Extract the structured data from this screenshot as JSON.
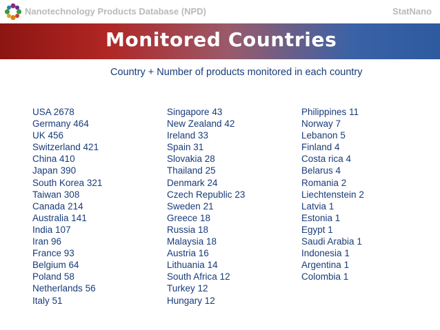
{
  "header": {
    "database_title": "Nanotechnology Products Database (NPD)",
    "brand": "StatNano",
    "logo_icon": "statnano-flower-logo-icon"
  },
  "banner": {
    "title": "Monitored Countries",
    "colors": [
      "#8c1512",
      "#b02624",
      "#9a5a6a",
      "#3a62a6",
      "#2e5aa0"
    ]
  },
  "subtitle": "Country + Number of products monitored in each country",
  "text_color": "#173b7a",
  "columns": [
    [
      {
        "country": "USA",
        "count": "2678"
      },
      {
        "country": "Germany",
        "count": "464"
      },
      {
        "country": "UK",
        "count": "456"
      },
      {
        "country": "Switzerland",
        "count": "421"
      },
      {
        "country": "China",
        "count": "410"
      },
      {
        "country": "Japan",
        "count": "390"
      },
      {
        "country": "South Korea",
        "count": "321"
      },
      {
        "country": "Taiwan",
        "count": "308"
      },
      {
        "country": "Canada",
        "count": "214"
      },
      {
        "country": "Australia",
        "count": "141"
      },
      {
        "country": "India",
        "count": "107"
      },
      {
        "country": "Iran",
        "count": "96"
      },
      {
        "country": "France",
        "count": "93"
      },
      {
        "country": "Belgium",
        "count": "64"
      },
      {
        "country": "Poland",
        "count": "58"
      },
      {
        "country": "Netherlands",
        "count": "56"
      },
      {
        "country": "Italy",
        "count": "51"
      }
    ],
    [
      {
        "country": "Singapore",
        "count": "43"
      },
      {
        "country": "New Zealand",
        "count": "42"
      },
      {
        "country": "Ireland",
        "count": "33"
      },
      {
        "country": "Spain",
        "count": "31"
      },
      {
        "country": "Slovakia",
        "count": "28"
      },
      {
        "country": "Thailand",
        "count": "25"
      },
      {
        "country": "Denmark",
        "count": "24"
      },
      {
        "country": "Czech Republic",
        "count": "23"
      },
      {
        "country": "Sweden",
        "count": "21"
      },
      {
        "country": "Greece",
        "count": "18"
      },
      {
        "country": "Russia",
        "count": "18"
      },
      {
        "country": "Malaysia",
        "count": "18"
      },
      {
        "country": "Austria",
        "count": "16"
      },
      {
        "country": "Lithuania",
        "count": "14"
      },
      {
        "country": "South Africa",
        "count": "12"
      },
      {
        "country": "Turkey",
        "count": "12"
      },
      {
        "country": "Hungary",
        "count": "12"
      }
    ],
    [
      {
        "country": "Philippines",
        "count": "11"
      },
      {
        "country": "Norway",
        "count": "7"
      },
      {
        "country": "Lebanon",
        "count": "5"
      },
      {
        "country": "Finland",
        "count": "4"
      },
      {
        "country": "Costa rica",
        "count": "4"
      },
      {
        "country": "Belarus",
        "count": "4"
      },
      {
        "country": "Romania",
        "count": "2"
      },
      {
        "country": "Liechtenstein",
        "count": "2"
      },
      {
        "country": "Latvia",
        "count": "1"
      },
      {
        "country": "Estonia",
        "count": "1"
      },
      {
        "country": "Egypt",
        "count": "1"
      },
      {
        "country": "Saudi Arabia",
        "count": "1"
      },
      {
        "country": "Indonesia",
        "count": "1"
      },
      {
        "country": "Argentina",
        "count": "1"
      },
      {
        "country": "Colombia",
        "count": "1"
      }
    ]
  ]
}
